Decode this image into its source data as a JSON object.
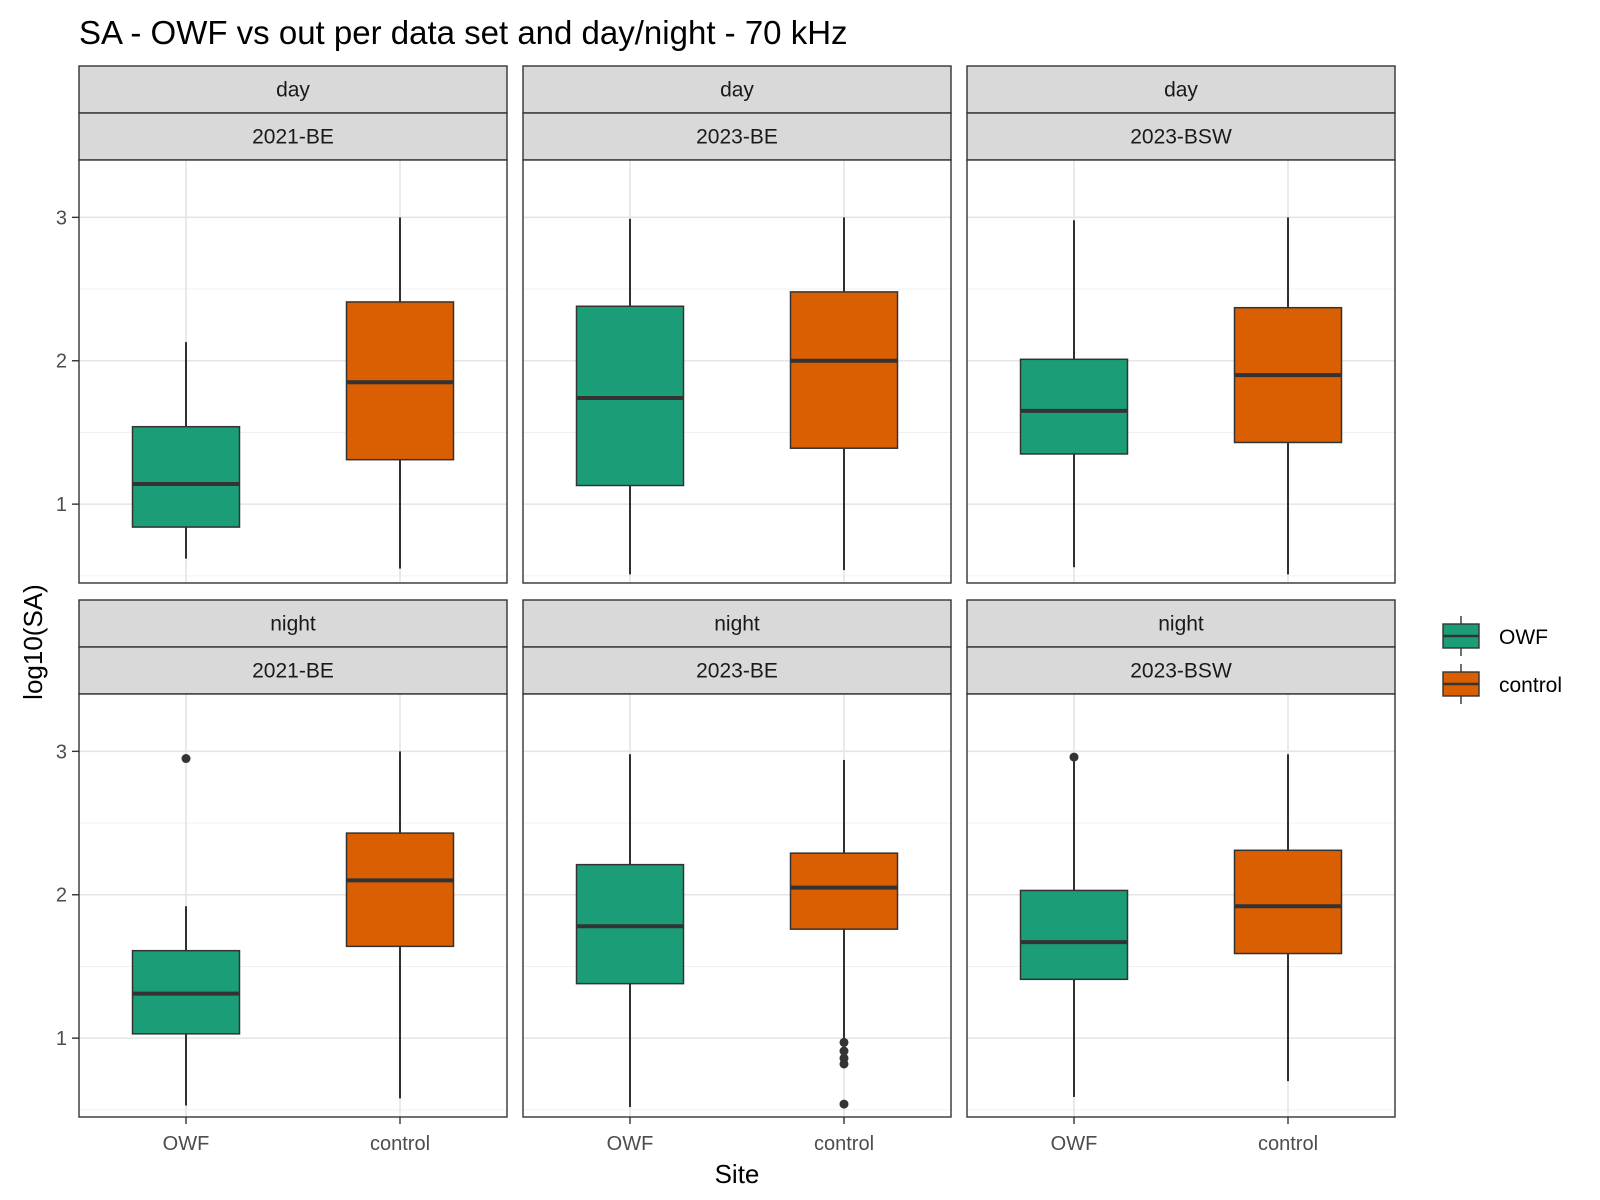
{
  "chart_data": {
    "type": "boxplot",
    "title": "SA - OWF vs out per data set and day/night - 70 kHz",
    "xlabel": "Site",
    "ylabel": "log10(SA)",
    "categories": [
      "OWF",
      "control"
    ],
    "ylim": [
      0.45,
      3.4
    ],
    "yticks": [
      1,
      2,
      3
    ],
    "grid": true,
    "legend": {
      "placement": "right",
      "entries": [
        {
          "name": "OWF",
          "color": "#1B9E77"
        },
        {
          "name": "control",
          "color": "#D95F02"
        }
      ]
    },
    "facets": [
      {
        "period": "day",
        "dataset": "2021-BE",
        "boxes": [
          {
            "category": "OWF",
            "lower_whisker": 0.62,
            "q1": 0.84,
            "median": 1.14,
            "q3": 1.54,
            "upper_whisker": 2.13,
            "outliers": []
          },
          {
            "category": "control",
            "lower_whisker": 0.55,
            "q1": 1.31,
            "median": 1.85,
            "q3": 2.41,
            "upper_whisker": 3.0,
            "outliers": []
          }
        ]
      },
      {
        "period": "day",
        "dataset": "2023-BE",
        "boxes": [
          {
            "category": "OWF",
            "lower_whisker": 0.51,
            "q1": 1.13,
            "median": 1.74,
            "q3": 2.38,
            "upper_whisker": 2.99,
            "outliers": []
          },
          {
            "category": "control",
            "lower_whisker": 0.54,
            "q1": 1.39,
            "median": 2.0,
            "q3": 2.48,
            "upper_whisker": 3.0,
            "outliers": []
          }
        ]
      },
      {
        "period": "day",
        "dataset": "2023-BSW",
        "boxes": [
          {
            "category": "OWF",
            "lower_whisker": 0.56,
            "q1": 1.35,
            "median": 1.65,
            "q3": 2.01,
            "upper_whisker": 2.98,
            "outliers": []
          },
          {
            "category": "control",
            "lower_whisker": 0.51,
            "q1": 1.43,
            "median": 1.9,
            "q3": 2.37,
            "upper_whisker": 3.0,
            "outliers": []
          }
        ]
      },
      {
        "period": "night",
        "dataset": "2021-BE",
        "boxes": [
          {
            "category": "OWF",
            "lower_whisker": 0.53,
            "q1": 1.03,
            "median": 1.31,
            "q3": 1.61,
            "upper_whisker": 1.92,
            "outliers": [
              2.95
            ]
          },
          {
            "category": "control",
            "lower_whisker": 0.58,
            "q1": 1.64,
            "median": 2.1,
            "q3": 2.43,
            "upper_whisker": 3.0,
            "outliers": []
          }
        ]
      },
      {
        "period": "night",
        "dataset": "2023-BE",
        "boxes": [
          {
            "category": "OWF",
            "lower_whisker": 0.52,
            "q1": 1.38,
            "median": 1.78,
            "q3": 2.21,
            "upper_whisker": 2.98,
            "outliers": []
          },
          {
            "category": "control",
            "lower_whisker": 0.97,
            "q1": 1.76,
            "median": 2.05,
            "q3": 2.29,
            "upper_whisker": 2.94,
            "outliers": [
              0.97,
              0.91,
              0.86,
              0.82,
              0.54
            ]
          }
        ]
      },
      {
        "period": "night",
        "dataset": "2023-BSW",
        "boxes": [
          {
            "category": "OWF",
            "lower_whisker": 0.59,
            "q1": 1.41,
            "median": 1.67,
            "q3": 2.03,
            "upper_whisker": 2.93,
            "outliers": [
              2.96
            ]
          },
          {
            "category": "control",
            "lower_whisker": 0.7,
            "q1": 1.59,
            "median": 1.92,
            "q3": 2.31,
            "upper_whisker": 2.98,
            "outliers": []
          }
        ]
      }
    ]
  }
}
